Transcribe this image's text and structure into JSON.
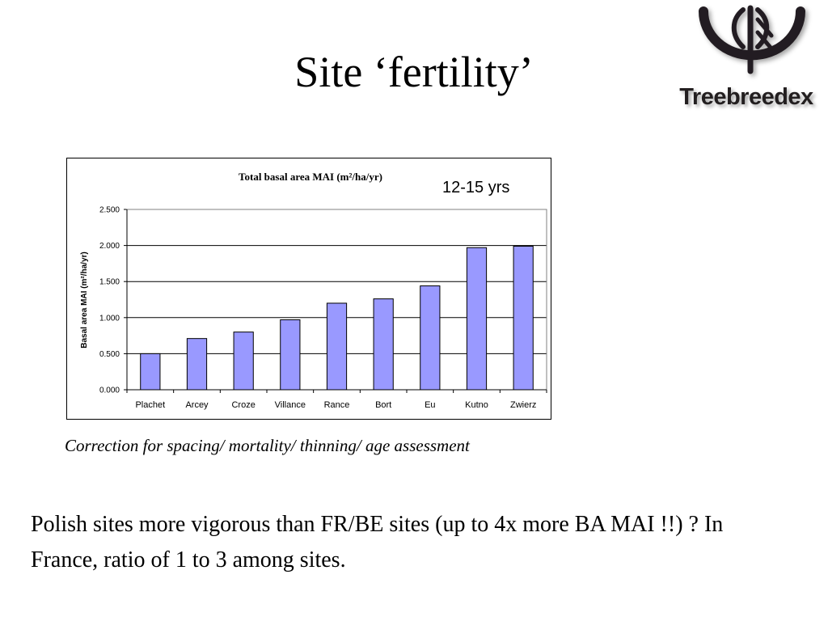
{
  "slide": {
    "title": "Site ‘fertility’",
    "logo_text": "Treebreedex",
    "caption": "Correction for spacing/ mortality/ thinning/ age assessment",
    "body": "Polish sites more vigorous than FR/BE sites (up to 4x more BA MAI !!) ?  In France, ratio of 1 to 3 among sites."
  },
  "chart_data": {
    "type": "bar",
    "title": "Total basal area MAI (m²/ha/yr)",
    "annotation": "12-15 yrs",
    "ylabel": "Basal area MAI (m²/ha/yr)",
    "xlabel": "",
    "categories": [
      "Plachet",
      "Arcey",
      "Croze",
      "Villance",
      "Rance",
      "Bort",
      "Eu",
      "Kutno",
      "Zwierz"
    ],
    "values": [
      0.5,
      0.71,
      0.8,
      0.97,
      1.2,
      1.26,
      1.44,
      1.97,
      1.99
    ],
    "ylim": [
      0,
      2.5
    ],
    "yticks": [
      "0.000",
      "0.500",
      "1.000",
      "1.500",
      "2.000",
      "2.500"
    ],
    "ytick_values": [
      0,
      0.5,
      1.0,
      1.5,
      2.0,
      2.5
    ],
    "grid": true,
    "legend": "none",
    "bar_color": "#9999ff"
  }
}
